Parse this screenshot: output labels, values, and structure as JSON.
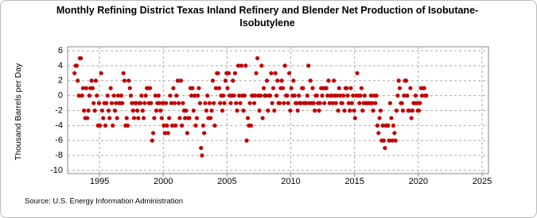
{
  "chart_data": {
    "type": "scatter",
    "title": "Monthly Refining District Texas Inland Refinery and Blender Net Production of Isobutane-Isobutylene",
    "y_label": "Thousand Barrels per Day",
    "source": "Source: U.S. Energy Information Administration",
    "xlim": [
      1992.5,
      2025.5
    ],
    "ylim": [
      -10,
      6
    ],
    "xticks": [
      1995,
      2000,
      2005,
      2010,
      2015,
      2020,
      2025
    ],
    "yticks": [
      -10,
      -8,
      -6,
      -4,
      -2,
      0,
      2,
      4,
      6
    ],
    "grid": true,
    "series": [
      {
        "name": "Isobutane-Isobutylene",
        "color": "#c00000",
        "x": [
          1993.04,
          1993.13,
          1993.21,
          1993.29,
          1993.38,
          1993.46,
          1993.54,
          1993.63,
          1993.71,
          1993.79,
          1993.88,
          1993.96,
          1994.04,
          1994.13,
          1994.21,
          1994.29,
          1994.38,
          1994.46,
          1994.54,
          1994.63,
          1994.71,
          1994.79,
          1994.88,
          1994.96,
          1995.04,
          1995.13,
          1995.21,
          1995.29,
          1995.38,
          1995.46,
          1995.54,
          1995.63,
          1995.71,
          1995.79,
          1995.88,
          1995.96,
          1996.04,
          1996.13,
          1996.21,
          1996.29,
          1996.38,
          1996.46,
          1996.54,
          1996.63,
          1996.71,
          1996.79,
          1996.88,
          1996.96,
          1997.04,
          1997.13,
          1997.21,
          1997.29,
          1997.38,
          1997.46,
          1997.54,
          1997.63,
          1997.71,
          1997.79,
          1997.88,
          1997.96,
          1998.04,
          1998.13,
          1998.21,
          1998.29,
          1998.38,
          1998.46,
          1998.54,
          1998.63,
          1998.71,
          1998.79,
          1998.88,
          1998.96,
          1999.04,
          1999.13,
          1999.21,
          1999.29,
          1999.38,
          1999.46,
          1999.54,
          1999.63,
          1999.71,
          1999.79,
          1999.88,
          1999.96,
          2000.04,
          2000.13,
          2000.21,
          2000.29,
          2000.38,
          2000.46,
          2000.54,
          2000.63,
          2000.71,
          2000.79,
          2000.88,
          2000.96,
          2001.04,
          2001.13,
          2001.21,
          2001.29,
          2001.38,
          2001.46,
          2001.54,
          2001.63,
          2001.71,
          2001.79,
          2001.88,
          2001.96,
          2002.04,
          2002.13,
          2002.21,
          2002.29,
          2002.38,
          2002.46,
          2002.54,
          2002.63,
          2002.71,
          2002.79,
          2002.88,
          2002.96,
          2003.04,
          2003.13,
          2003.21,
          2003.29,
          2003.38,
          2003.46,
          2003.54,
          2003.63,
          2003.71,
          2003.79,
          2003.88,
          2003.96,
          2004.04,
          2004.13,
          2004.21,
          2004.29,
          2004.38,
          2004.46,
          2004.54,
          2004.63,
          2004.71,
          2004.79,
          2004.88,
          2004.96,
          2005.04,
          2005.13,
          2005.21,
          2005.29,
          2005.38,
          2005.46,
          2005.54,
          2005.63,
          2005.71,
          2005.79,
          2005.88,
          2005.96,
          2006.04,
          2006.13,
          2006.21,
          2006.29,
          2006.38,
          2006.46,
          2006.54,
          2006.63,
          2006.71,
          2006.79,
          2006.88,
          2006.96,
          2007.04,
          2007.13,
          2007.21,
          2007.29,
          2007.38,
          2007.46,
          2007.54,
          2007.63,
          2007.71,
          2007.79,
          2007.88,
          2007.96,
          2008.04,
          2008.13,
          2008.21,
          2008.29,
          2008.38,
          2008.46,
          2008.54,
          2008.63,
          2008.71,
          2008.79,
          2008.88,
          2008.96,
          2009.04,
          2009.13,
          2009.21,
          2009.29,
          2009.38,
          2009.46,
          2009.54,
          2009.63,
          2009.71,
          2009.79,
          2009.88,
          2009.96,
          2010.04,
          2010.13,
          2010.21,
          2010.29,
          2010.38,
          2010.46,
          2010.54,
          2010.63,
          2010.71,
          2010.79,
          2010.88,
          2010.96,
          2011.04,
          2011.13,
          2011.21,
          2011.29,
          2011.38,
          2011.46,
          2011.54,
          2011.63,
          2011.71,
          2011.79,
          2011.88,
          2011.96,
          2012.04,
          2012.13,
          2012.21,
          2012.29,
          2012.38,
          2012.46,
          2012.54,
          2012.63,
          2012.71,
          2012.79,
          2012.88,
          2012.96,
          2013.04,
          2013.13,
          2013.21,
          2013.29,
          2013.38,
          2013.46,
          2013.54,
          2013.63,
          2013.71,
          2013.79,
          2013.88,
          2013.96,
          2014.04,
          2014.13,
          2014.21,
          2014.29,
          2014.38,
          2014.46,
          2014.54,
          2014.63,
          2014.71,
          2014.79,
          2014.88,
          2014.96,
          2015.04,
          2015.13,
          2015.21,
          2015.29,
          2015.38,
          2015.46,
          2015.54,
          2015.63,
          2015.71,
          2015.79,
          2015.88,
          2015.96,
          2016.04,
          2016.13,
          2016.21,
          2016.29,
          2016.38,
          2016.46,
          2016.54,
          2016.63,
          2016.71,
          2016.79,
          2016.88,
          2016.96,
          2017.04,
          2017.13,
          2017.21,
          2017.29,
          2017.38,
          2017.46,
          2017.54,
          2017.63,
          2017.71,
          2017.79,
          2017.88,
          2017.96,
          2018.04,
          2018.13,
          2018.21,
          2018.29,
          2018.38,
          2018.46,
          2018.54,
          2018.63,
          2018.71,
          2018.79,
          2018.88,
          2018.96,
          2019.04,
          2019.13,
          2019.21,
          2019.29,
          2019.38,
          2019.46,
          2019.54,
          2019.63,
          2019.71,
          2019.79,
          2019.88,
          2019.96,
          2020.04,
          2020.13,
          2020.21,
          2020.29,
          2020.38,
          2020.46,
          2020.54,
          2020.63
        ],
        "values": [
          3,
          4,
          4,
          2,
          0,
          5,
          5,
          0,
          1,
          -2,
          -3,
          1,
          -3,
          -2,
          0,
          1,
          2,
          1,
          -1,
          -2,
          2,
          0,
          -4,
          -1,
          -4,
          3,
          -2,
          -3,
          -1,
          -4,
          -1,
          0,
          -2,
          -3,
          1,
          -1,
          -4,
          0,
          -2,
          -1,
          -3,
          0,
          -1,
          -1,
          0,
          -1,
          3,
          2,
          -4,
          -3,
          -4,
          2,
          1,
          0,
          -1,
          -2,
          -3,
          -1,
          -1,
          -2,
          -3,
          -1,
          -1,
          0,
          -2,
          -3,
          -1,
          0,
          1,
          1,
          -1,
          1,
          -1,
          -6,
          -5,
          -3,
          0,
          -2,
          -1,
          0,
          -1,
          -2,
          -3,
          -1,
          -4,
          -5,
          -1,
          -4,
          -5,
          -3,
          0,
          -1,
          -4,
          1,
          -1,
          -4,
          0,
          2,
          -1,
          -3,
          2,
          -4,
          -1,
          -2,
          -3,
          -2,
          -5,
          -3,
          -3,
          1,
          0,
          1,
          -2,
          0,
          -4,
          -3,
          0,
          1,
          -1,
          -7,
          -8,
          -4,
          -5,
          -1,
          -2,
          0,
          -3,
          -1,
          -3,
          -2,
          2,
          -1,
          -4,
          1,
          3,
          3,
          1,
          -1,
          0,
          -2,
          0,
          -1,
          2,
          3,
          1,
          3,
          0,
          -1,
          0,
          2,
          0,
          3,
          -1,
          -2,
          4,
          0,
          -1,
          4,
          0,
          -2,
          0,
          4,
          -6,
          -3,
          -4,
          -1,
          -4,
          0,
          0,
          -1,
          0,
          3,
          5,
          0,
          -2,
          0,
          4,
          -3,
          1,
          0,
          0,
          2,
          -2,
          0,
          0,
          3,
          -1,
          1,
          -2,
          3,
          0,
          2,
          -1,
          -1,
          1,
          2,
          1,
          -1,
          4,
          0,
          0,
          -1,
          3,
          -2,
          1,
          0,
          2,
          0,
          -1,
          -1,
          -2,
          0,
          -1,
          -1,
          1,
          1,
          -1,
          -1,
          -1,
          0,
          4,
          -1,
          2,
          -1,
          1,
          -1,
          -2,
          0,
          0,
          -1,
          -2,
          -1,
          1,
          0,
          1,
          -1,
          1,
          1,
          0,
          2,
          -1,
          0,
          0,
          -1,
          2,
          0,
          -1,
          0,
          -2,
          1,
          0,
          -1,
          -1,
          0,
          -2,
          1,
          1,
          0,
          -1,
          -2,
          1,
          -1,
          0,
          -2,
          -3,
          0,
          3,
          0,
          -1,
          0,
          1,
          -2,
          -1,
          0,
          -1,
          -1,
          -1,
          -1,
          -1,
          0,
          -1,
          -2,
          0,
          -1,
          0,
          -4,
          -5,
          -3,
          -2,
          -6,
          -4,
          -6,
          -7,
          -4,
          -4,
          -4,
          -6,
          -1,
          -3,
          -6,
          -4,
          -5,
          -6,
          -2,
          0,
          2,
          1,
          -1,
          -1,
          -2,
          0,
          2,
          2,
          0,
          -2,
          -2,
          1,
          -3,
          -2,
          -1,
          -1,
          0,
          -1,
          -2,
          -2,
          -1,
          1,
          0,
          1,
          1,
          0,
          0
        ]
      }
    ]
  }
}
